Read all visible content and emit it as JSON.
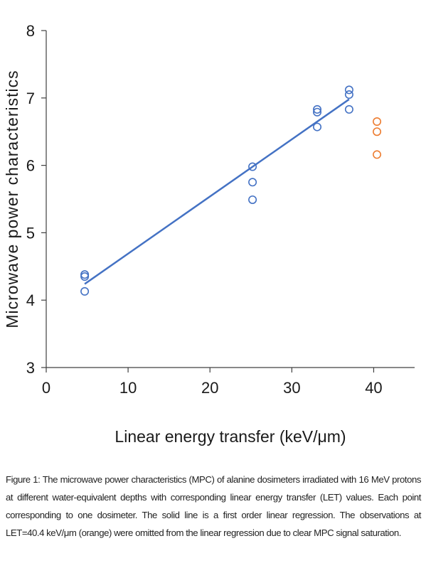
{
  "chart_data": {
    "type": "scatter",
    "xlabel": "Linear energy transfer (keV/μm)",
    "ylabel": "Microwave power characteristics",
    "xlim": [
      0,
      45
    ],
    "ylim": [
      3,
      8
    ],
    "x_ticks": [
      "0",
      "10",
      "20",
      "30",
      "40"
    ],
    "x_tick_values": [
      0,
      10,
      20,
      30,
      40
    ],
    "y_ticks": [
      "3",
      "4",
      "5",
      "6",
      "7",
      "8"
    ],
    "y_tick_values": [
      3,
      4,
      5,
      6,
      7,
      8
    ],
    "grid": false,
    "series": [
      {
        "color": "#4472C4",
        "marker": "open-circle",
        "points": [
          {
            "x": 4.7,
            "y": 4.38
          },
          {
            "x": 4.7,
            "y": 4.35
          },
          {
            "x": 4.7,
            "y": 4.13
          },
          {
            "x": 25.2,
            "y": 5.98
          },
          {
            "x": 25.2,
            "y": 5.75
          },
          {
            "x": 25.2,
            "y": 5.49
          },
          {
            "x": 33.1,
            "y": 6.83
          },
          {
            "x": 33.1,
            "y": 6.79
          },
          {
            "x": 33.1,
            "y": 6.57
          },
          {
            "x": 37.0,
            "y": 7.12
          },
          {
            "x": 37.0,
            "y": 7.05
          },
          {
            "x": 37.0,
            "y": 6.83
          }
        ]
      },
      {
        "color": "#ED7D31",
        "marker": "open-circle",
        "points": [
          {
            "x": 40.4,
            "y": 6.65
          },
          {
            "x": 40.4,
            "y": 6.5
          },
          {
            "x": 40.4,
            "y": 6.16
          }
        ]
      }
    ],
    "regression": {
      "color": "#4472C4",
      "x_start": 4.7,
      "y_start": 4.24,
      "x_end": 37.0,
      "y_end": 6.98
    }
  },
  "caption": "Figure 1: The microwave power characteristics (MPC) of alanine dosimeters irradiated with 16 MeV protons at different water-equivalent depths with corresponding linear energy transfer (LET) values. Each point corresponding to one dosimeter. The solid line is a first order linear regression. The observations at LET=40.4 keV/μm (orange) were omitted from the linear regression due to clear MPC signal saturation."
}
